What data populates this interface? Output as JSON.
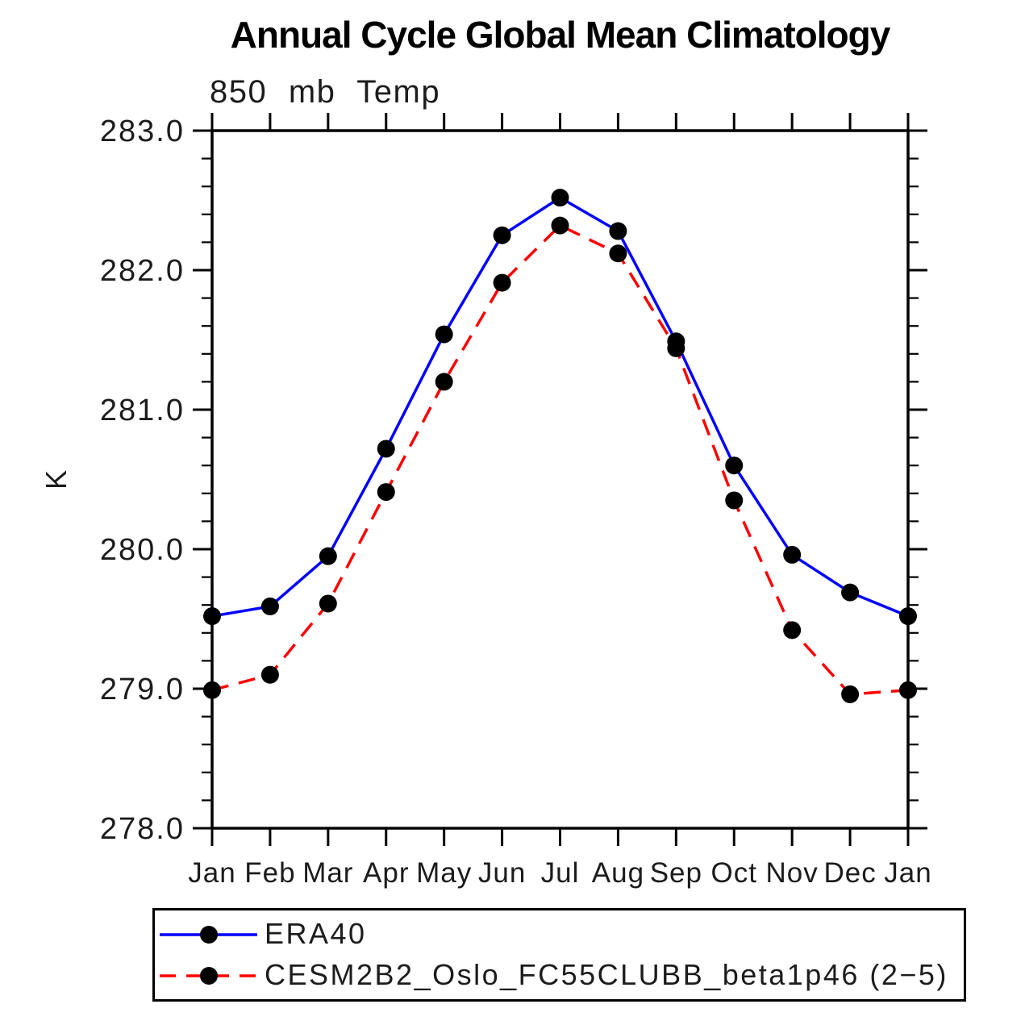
{
  "title": "Annual Cycle Global Mean Climatology",
  "subtitle": "850 mb Temp",
  "chart_data": {
    "type": "line",
    "title": "Annual Cycle Global Mean Climatology",
    "subtitle": "850 mb Temp",
    "xlabel": "",
    "ylabel": "K",
    "categories": [
      "Jan",
      "Feb",
      "Mar",
      "Apr",
      "May",
      "Jun",
      "Jul",
      "Aug",
      "Sep",
      "Oct",
      "Nov",
      "Dec",
      "Jan"
    ],
    "series": [
      {
        "name": "ERA40",
        "line_style": "solid",
        "line_color": "#0000ff",
        "marker": "circle",
        "marker_color": "#000000",
        "values": [
          279.52,
          279.59,
          279.95,
          280.72,
          281.54,
          282.25,
          282.52,
          282.28,
          281.49,
          280.6,
          279.96,
          279.69,
          279.52
        ]
      },
      {
        "name": "CESM2B2_Oslo_FC55CLUBB_beta1p46 (2−5)",
        "line_style": "dashed",
        "line_color": "#ff0000",
        "marker": "circle",
        "marker_color": "#000000",
        "values": [
          278.99,
          279.1,
          279.61,
          280.41,
          281.2,
          281.91,
          282.32,
          282.12,
          281.44,
          280.35,
          279.42,
          278.96,
          278.99
        ]
      }
    ],
    "ylim": [
      278.0,
      283.0
    ],
    "ytick_major_step": 1.0,
    "ytick_minor_step": 0.2,
    "ytick_labels": [
      "278.0",
      "279.0",
      "280.0",
      "281.0",
      "282.0",
      "283.0"
    ],
    "grid": false,
    "legend_position": "bottom",
    "axis_color": "#000000"
  },
  "legend": {
    "items": [
      {
        "label": "ERA40"
      },
      {
        "label": "CESM2B2_Oslo_FC55CLUBB_beta1p46 (2−5)"
      }
    ]
  }
}
